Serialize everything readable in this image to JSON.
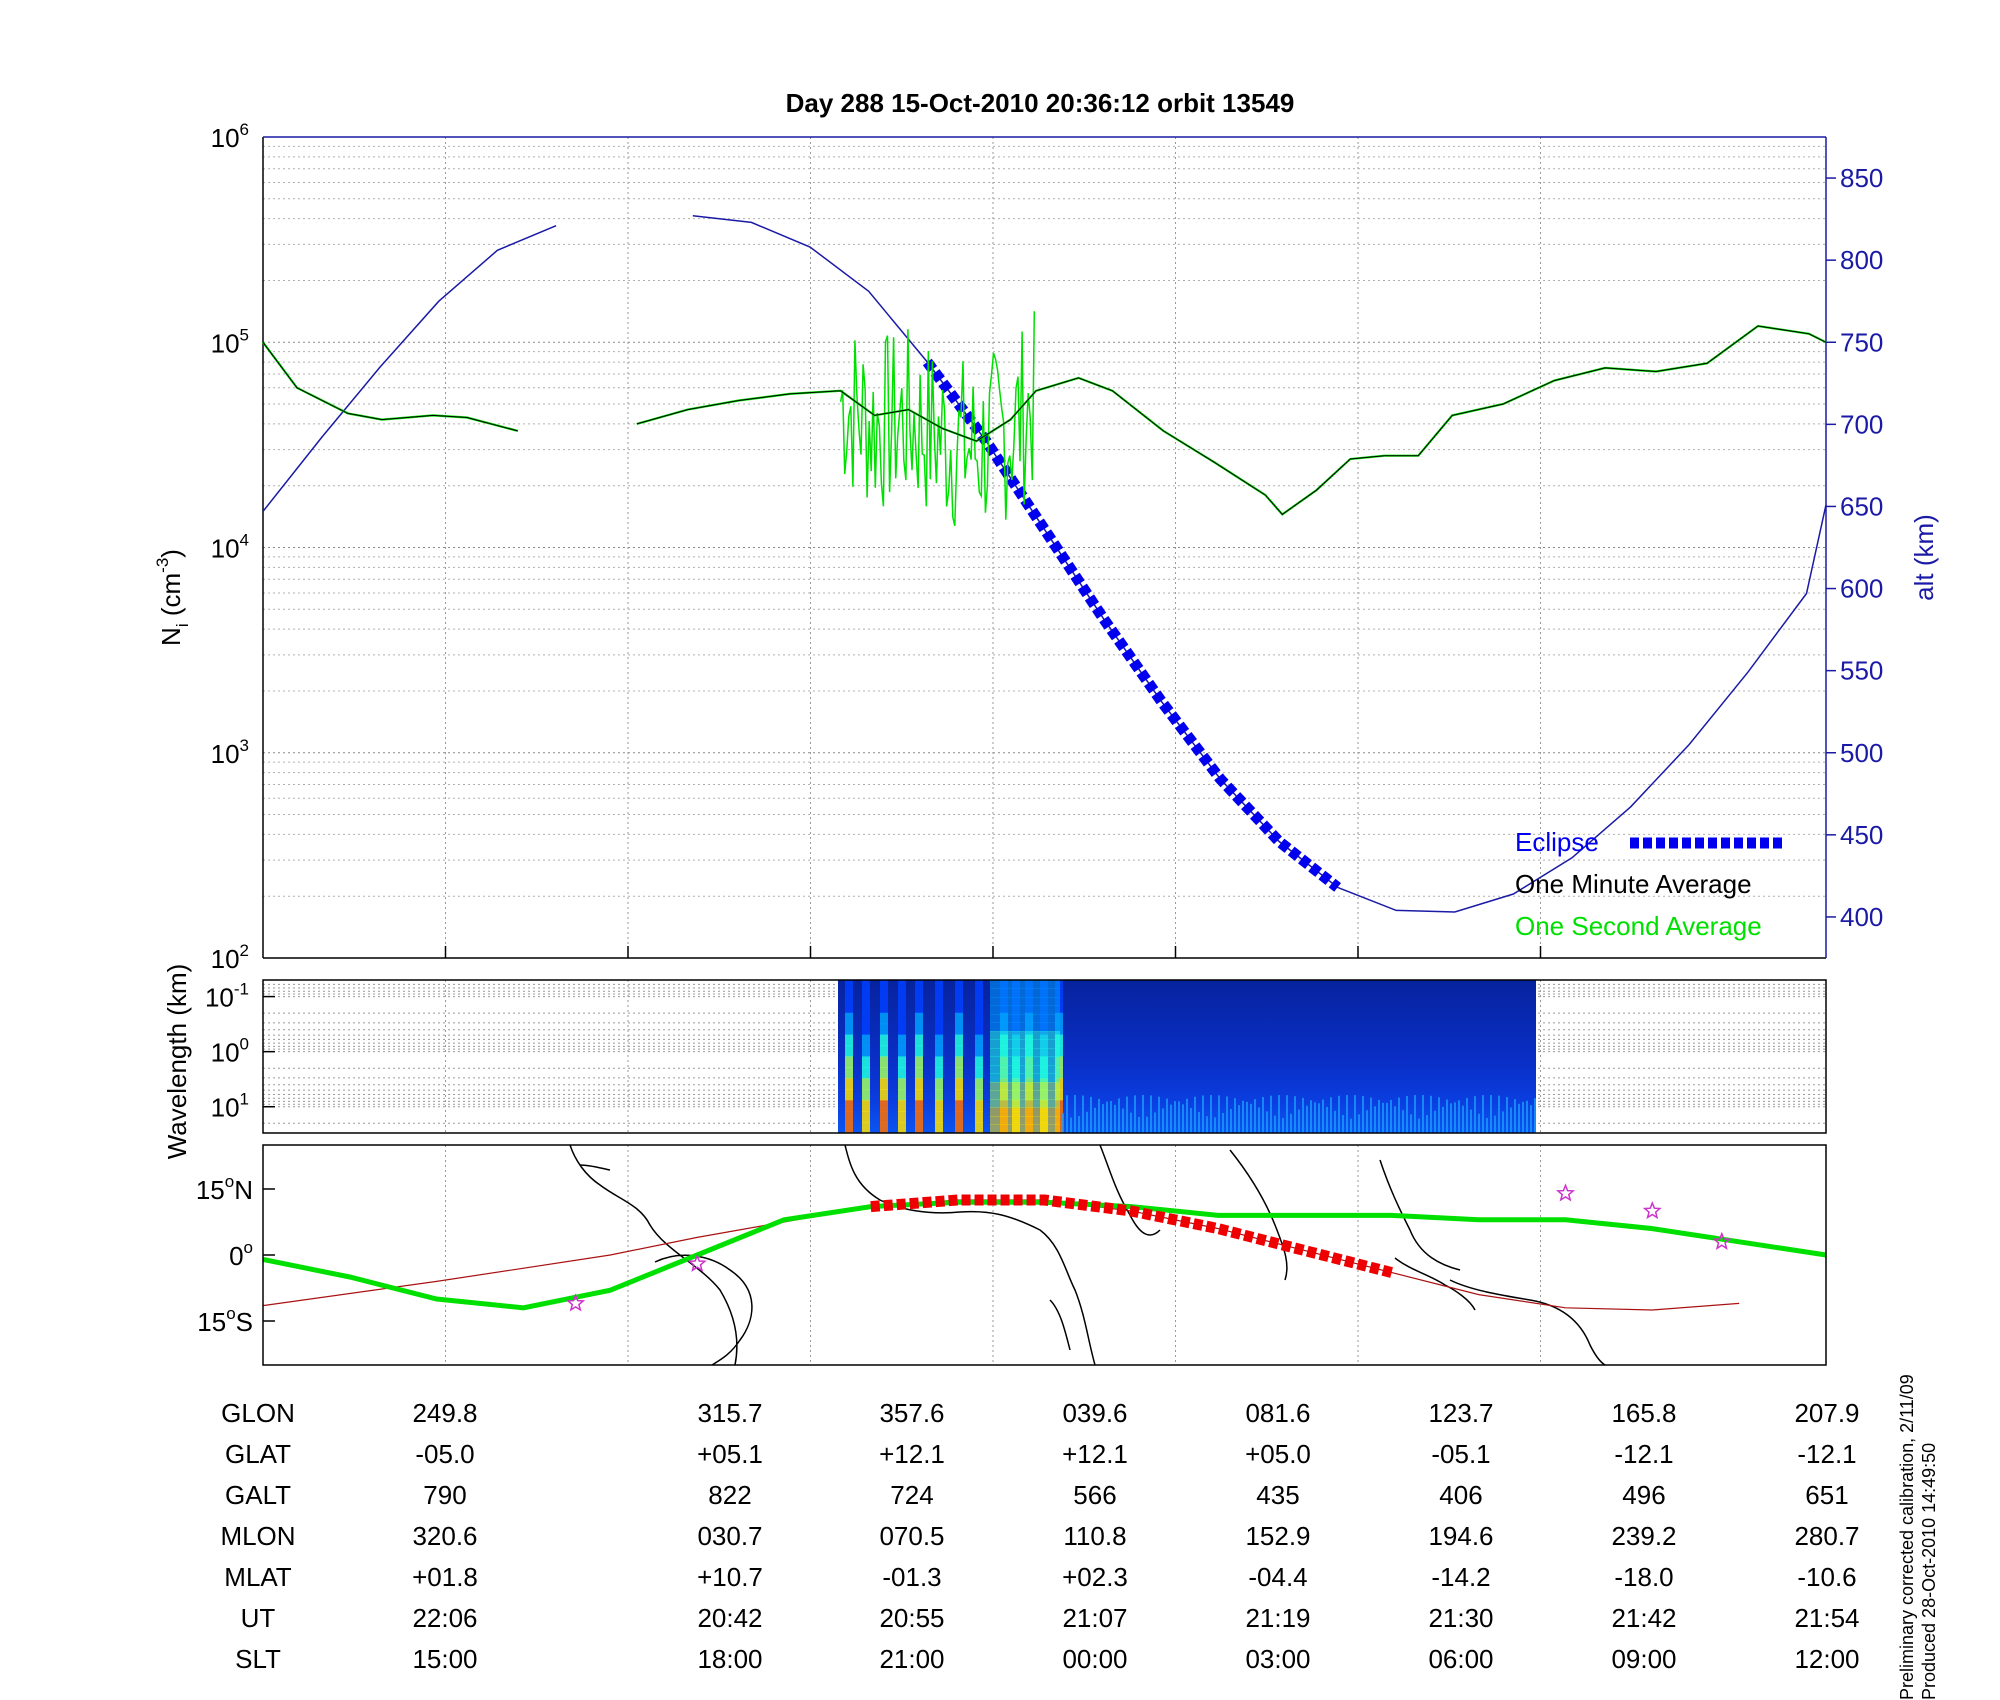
{
  "chart_data": [
    {
      "type": "line",
      "title": "Day 288  15-Oct-2010 20:36:12   orbit 13549",
      "ylabel_html": [
        "N",
        "i",
        " (cm",
        "-3",
        ")"
      ],
      "y_scale": "log",
      "ylim": [
        100,
        1000000
      ],
      "yticks": [
        {
          "value": 100,
          "base": "10",
          "exp": "2"
        },
        {
          "value": 1000,
          "base": "10",
          "exp": "3"
        },
        {
          "value": 10000,
          "base": "10",
          "exp": "4"
        },
        {
          "value": 100000,
          "base": "10",
          "exp": "5"
        },
        {
          "value": 1000000,
          "base": "10",
          "exp": "6"
        }
      ],
      "y2label": "alt (km)",
      "y2lim": [
        375,
        875
      ],
      "y2ticks": [
        "400",
        "450",
        "500",
        "550",
        "600",
        "650",
        "700",
        "750",
        "800",
        "850"
      ],
      "x_index_range": [
        0,
        8
      ],
      "grid": true,
      "legend_position": "bottom-right",
      "legend": [
        {
          "label": "Eclipse",
          "color": "#0000ee",
          "style": "dashed-thick"
        },
        {
          "label": "One Minute Average",
          "color": "#000000"
        },
        {
          "label": "One Second Average",
          "color": "#00e000"
        }
      ],
      "altitude_km": [
        [
          0,
          647
        ],
        [
          0.3,
          692
        ],
        [
          0.6,
          735
        ],
        [
          0.9,
          775
        ],
        [
          1.2,
          806
        ],
        [
          1.5,
          821
        ],
        [
          2.2,
          827
        ],
        [
          2.5,
          823
        ],
        [
          2.8,
          808
        ],
        [
          3.1,
          781
        ],
        [
          3.4,
          738
        ],
        [
          3.7,
          690
        ],
        [
          4.0,
          636
        ],
        [
          4.3,
          582
        ],
        [
          4.6,
          531
        ],
        [
          4.9,
          484
        ],
        [
          5.2,
          446
        ],
        [
          5.5,
          418
        ],
        [
          5.8,
          404
        ],
        [
          6.1,
          403
        ],
        [
          6.4,
          414
        ],
        [
          6.7,
          436
        ],
        [
          7.0,
          467
        ],
        [
          7.3,
          505
        ],
        [
          7.6,
          549
        ],
        [
          7.9,
          597
        ],
        [
          8.0,
          651
        ]
      ],
      "altitude_gap": [
        1.5,
        2.2
      ],
      "eclipse_range": [
        3.4,
        5.7
      ],
      "one_minute_average": [
        [
          0,
          100000
        ],
        [
          0.2,
          60000
        ],
        [
          0.5,
          45000
        ],
        [
          0.7,
          42000
        ],
        [
          1.0,
          44000
        ],
        [
          1.2,
          43000
        ],
        [
          1.5,
          37000
        ],
        [
          2.2,
          40000
        ],
        [
          2.5,
          47000
        ],
        [
          2.8,
          52000
        ],
        [
          3.1,
          56000
        ],
        [
          3.4,
          58000
        ],
        [
          3.6,
          44000
        ],
        [
          3.8,
          47000
        ],
        [
          4.0,
          38000
        ],
        [
          4.2,
          33000
        ],
        [
          4.4,
          42000
        ],
        [
          4.55,
          58000
        ],
        [
          4.8,
          67000
        ],
        [
          5.0,
          58000
        ],
        [
          5.3,
          37000
        ],
        [
          5.6,
          26000
        ],
        [
          5.9,
          18000
        ],
        [
          6.0,
          14500
        ],
        [
          6.2,
          19000
        ],
        [
          6.4,
          27000
        ],
        [
          6.6,
          28000
        ],
        [
          6.8,
          28000
        ],
        [
          7.0,
          44000
        ],
        [
          7.3,
          50000
        ],
        [
          7.6,
          65000
        ],
        [
          7.9,
          75000
        ],
        [
          8.2,
          72000
        ],
        [
          8.5,
          79000
        ],
        [
          8.8,
          120000
        ],
        [
          9.1,
          110000
        ],
        [
          9.2,
          100000
        ]
      ],
      "one_minute_gap": [
        1.5,
        2.2
      ],
      "one_second_noisy_range": [
        3.4,
        4.55
      ]
    },
    {
      "type": "heatmap",
      "ylabel": "Wavelength (km)",
      "y_scale": "log",
      "ylim": [
        0.05,
        30
      ],
      "yticks": [
        {
          "value": 0.1,
          "base": "10",
          "exp": "-1"
        },
        {
          "value": 1,
          "base": "10",
          "exp": "0"
        },
        {
          "value": 10,
          "base": "10",
          "exp": "1"
        }
      ],
      "x_range": [
        3.4,
        7.35
      ],
      "colormap": "jet",
      "description_text": ""
    },
    {
      "type": "line",
      "subtype": "map",
      "yticks": [
        {
          "value": 15,
          "label": "15",
          "deg": "o",
          "hemi": "N"
        },
        {
          "value": 0,
          "label": "0",
          "deg": "o",
          "hemi": ""
        },
        {
          "value": -15,
          "label": "15",
          "deg": "o",
          "hemi": "S"
        }
      ],
      "ylim": [
        -25,
        25
      ],
      "track_glat": [
        [
          0,
          -1
        ],
        [
          0.5,
          -5
        ],
        [
          1.0,
          -10
        ],
        [
          1.5,
          -12
        ],
        [
          2.0,
          -8
        ],
        [
          2.5,
          0
        ],
        [
          3.0,
          8
        ],
        [
          3.5,
          11
        ],
        [
          4.0,
          12
        ],
        [
          4.5,
          12
        ],
        [
          5.0,
          11
        ],
        [
          5.5,
          9
        ],
        [
          6.0,
          9
        ],
        [
          6.5,
          9
        ],
        [
          7.0,
          8
        ],
        [
          7.5,
          8
        ],
        [
          8.0,
          6
        ],
        [
          8.5,
          3
        ],
        [
          9.0,
          0
        ]
      ],
      "track_mlat": [
        [
          0,
          -11.5
        ],
        [
          1.0,
          -6
        ],
        [
          2.0,
          0
        ],
        [
          2.5,
          4
        ],
        [
          3.5,
          11
        ],
        [
          4.0,
          12.5
        ],
        [
          4.5,
          12.5
        ],
        [
          5.0,
          10
        ],
        [
          5.5,
          6
        ],
        [
          6.0,
          1
        ],
        [
          6.5,
          -4
        ],
        [
          7.0,
          -9
        ],
        [
          7.5,
          -12
        ],
        [
          8.0,
          -12.5
        ],
        [
          8.5,
          -11
        ]
      ],
      "eclipse_range": [
        3.4,
        6.5
      ],
      "star_markers": [
        [
          1.8,
          -11
        ],
        [
          2.5,
          -2
        ],
        [
          7.5,
          14
        ],
        [
          8.0,
          10
        ],
        [
          8.4,
          3
        ]
      ]
    }
  ],
  "table": {
    "rows": [
      {
        "label": "GLON",
        "values": [
          "249.8",
          "315.7",
          "357.6",
          "039.6",
          "081.6",
          "123.7",
          "165.8",
          "207.9"
        ]
      },
      {
        "label": "GLAT",
        "values": [
          "-05.0",
          "+05.1",
          "+12.1",
          "+12.1",
          "+05.0",
          "-05.1",
          "-12.1",
          "-12.1"
        ]
      },
      {
        "label": "GALT",
        "values": [
          "790",
          "822",
          "724",
          "566",
          "435",
          "406",
          "496",
          "651"
        ]
      },
      {
        "label": "MLON",
        "values": [
          "320.6",
          "030.7",
          "070.5",
          "110.8",
          "152.9",
          "194.6",
          "239.2",
          "280.7"
        ]
      },
      {
        "label": "MLAT",
        "values": [
          "+01.8",
          "+10.7",
          "-01.3",
          "+02.3",
          "-04.4",
          "-14.2",
          "-18.0",
          "-10.6"
        ]
      },
      {
        "label": "UT",
        "values": [
          "22:06",
          "20:42",
          "20:55",
          "21:07",
          "21:19",
          "21:30",
          "21:42",
          "21:54"
        ]
      },
      {
        "label": "SLT",
        "values": [
          "15:00",
          "18:00",
          "21:00",
          "00:00",
          "03:00",
          "06:00",
          "09:00",
          "12:00"
        ]
      }
    ]
  },
  "footer": {
    "line1": "Preliminary corrected calibration, 2/11/09",
    "line2": "Produced 28-Oct-2010 14:49:50"
  },
  "colors": {
    "axis": "#000000",
    "altitude": "#1a1aa6",
    "eclipse": "#0000ee",
    "one_minute": "#000000",
    "one_second": "#00e000",
    "map_track": "#00e000",
    "map_mlat": "#aa1111",
    "map_eclipse": "#ee0000",
    "star": "#cc33cc"
  }
}
